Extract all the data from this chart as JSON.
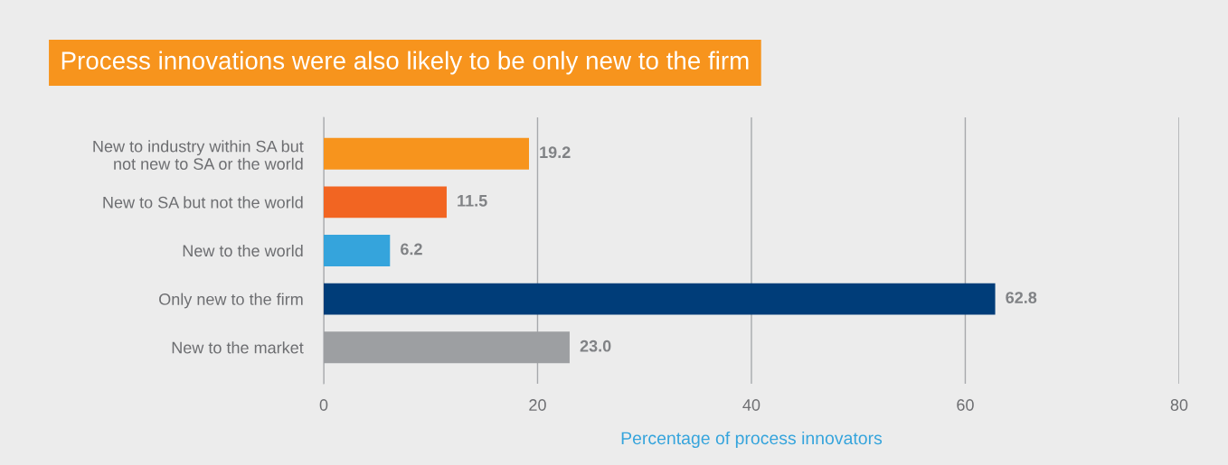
{
  "chart_data": {
    "type": "bar",
    "orientation": "horizontal",
    "title": "Process innovations were also likely to be only new to the firm",
    "xlabel": "Percentage of process innovators",
    "categories": [
      "New to industry within SA but\nnot new to SA or the world",
      "New to SA but not the world",
      "New to the world",
      "Only new to the firm",
      "New to the market"
    ],
    "values": [
      19.2,
      11.5,
      6.2,
      62.8,
      23.0
    ],
    "colors": [
      "#f7941d",
      "#f26522",
      "#35a4dc",
      "#003d79",
      "#9d9fa2"
    ],
    "value_labels": [
      "19.2",
      "11.5",
      "6.2",
      "62.8",
      "23.0"
    ],
    "xlim": [
      0,
      80
    ],
    "xticks": [
      0,
      20,
      40,
      60,
      80
    ],
    "grid": "x"
  }
}
